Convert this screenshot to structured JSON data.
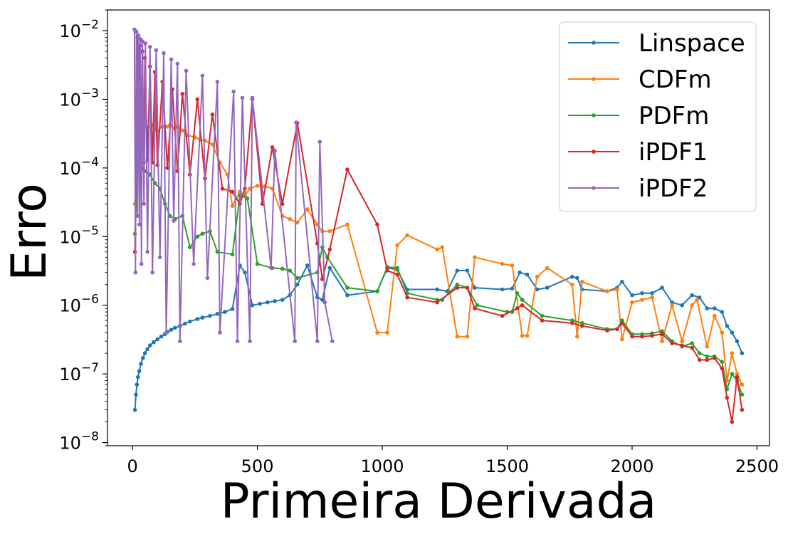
{
  "chart_data": {
    "type": "line",
    "title": "",
    "xlabel": "Primeira Derivada",
    "ylabel": "Erro",
    "xlim": [
      -100,
      2550
    ],
    "ylim": [
      9e-09,
      0.02
    ],
    "yscale": "log",
    "grid": false,
    "legend_position": "top-right",
    "xticks": [
      0,
      500,
      1000,
      1500,
      2000,
      2500
    ],
    "xtick_labels": [
      "0",
      "500",
      "1000",
      "1500",
      "2000",
      "2500"
    ],
    "yticks": [
      1e-08,
      1e-07,
      1e-06,
      1e-05,
      0.0001,
      0.001,
      0.01
    ],
    "ytick_labels": [
      {
        "base": "10",
        "exp": "−8"
      },
      {
        "base": "10",
        "exp": "−7"
      },
      {
        "base": "10",
        "exp": "−6"
      },
      {
        "base": "10",
        "exp": "−5"
      },
      {
        "base": "10",
        "exp": "−4"
      },
      {
        "base": "10",
        "exp": "−3"
      },
      {
        "base": "10",
        "exp": "−2"
      }
    ],
    "series": [
      {
        "name": "Linspace",
        "color": "#1f77b4",
        "x": [
          10,
          14,
          18,
          22,
          27,
          34,
          42,
          50,
          60,
          70,
          85,
          100,
          115,
          130,
          140,
          155,
          170,
          190,
          210,
          230,
          260,
          280,
          310,
          340,
          370,
          400,
          430,
          450,
          480,
          510,
          540,
          570,
          600,
          630,
          660,
          700,
          740,
          760,
          790,
          860,
          980,
          1020,
          1060,
          1100,
          1220,
          1260,
          1300,
          1340,
          1370,
          1480,
          1520,
          1550,
          1580,
          1620,
          1660,
          1760,
          1780,
          1800,
          1900,
          1940,
          1960,
          2000,
          2040,
          2080,
          2120,
          2160,
          2200,
          2240,
          2270,
          2300,
          2330,
          2360,
          2380,
          2400,
          2420,
          2440
        ],
        "y": [
          3e-08,
          5e-08,
          7e-08,
          9e-08,
          1.1e-07,
          1.4e-07,
          1.7e-07,
          2e-07,
          2.3e-07,
          2.6e-07,
          2.9e-07,
          3.2e-07,
          3.5e-07,
          3.8e-07,
          4.1e-07,
          4.4e-07,
          4.7e-07,
          5e-07,
          5.4e-07,
          5.8e-07,
          6.3e-07,
          6.6e-07,
          7e-07,
          7.5e-07,
          8e-07,
          8.8e-07,
          3.8e-06,
          3e-06,
          1e-06,
          1.05e-06,
          1.1e-06,
          1.15e-06,
          1.2e-06,
          1.4e-06,
          2e-06,
          3.8e-06,
          1.3e-06,
          1.2e-06,
          3.5e-06,
          1.4e-06,
          1.6e-06,
          3.5e-06,
          3.3e-06,
          1.7e-06,
          1.7e-06,
          1.6e-06,
          3.2e-06,
          3.2e-06,
          1.8e-06,
          1.7e-06,
          1.75e-06,
          3e-06,
          2.8e-06,
          1.7e-06,
          1.8e-06,
          2.6e-06,
          2.5e-06,
          1.7e-06,
          1.6e-06,
          1.8e-06,
          2.2e-06,
          1.4e-06,
          1.5e-06,
          1.5e-06,
          1.8e-06,
          1.1e-06,
          1e-06,
          1.4e-06,
          1.3e-06,
          9e-07,
          9e-07,
          8e-07,
          5e-07,
          4e-07,
          3e-07,
          2e-07
        ]
      },
      {
        "name": "CDFm",
        "color": "#ff7f0e",
        "x": [
          10,
          20,
          30,
          45,
          60,
          80,
          100,
          120,
          140,
          150,
          165,
          180,
          200,
          220,
          250,
          270,
          290,
          320,
          350,
          380,
          400,
          430,
          450,
          470,
          500,
          530,
          560,
          600,
          630,
          660,
          700,
          740,
          760,
          790,
          860,
          980,
          1020,
          1060,
          1100,
          1220,
          1240,
          1300,
          1340,
          1370,
          1480,
          1520,
          1560,
          1580,
          1620,
          1660,
          1760,
          1780,
          1800,
          1900,
          1940,
          1960,
          2000,
          2040,
          2080,
          2120,
          2160,
          2200,
          2240,
          2260,
          2300,
          2330,
          2360,
          2380,
          2400,
          2420,
          2440
        ],
        "y": [
          3e-05,
          0.0003,
          0.00035,
          0.0004,
          0.00038,
          0.00042,
          0.00035,
          0.0004,
          0.0004,
          0.00042,
          0.00038,
          0.0004,
          0.00035,
          0.0003,
          0.00028,
          0.00026,
          0.00025,
          0.00022,
          0.00012,
          8e-05,
          2.8e-05,
          4.5e-05,
          4e-05,
          5e-05,
          5.5e-05,
          5.4e-05,
          5e-05,
          2e-05,
          1.8e-05,
          1.6e-05,
          2.5e-05,
          1.5e-05,
          1.2e-05,
          1.2e-05,
          1.5e-05,
          4e-07,
          4e-07,
          7.5e-06,
          1.05e-05,
          6.5e-06,
          7e-06,
          3.5e-07,
          3.5e-07,
          5e-06,
          4e-06,
          3.8e-06,
          3.6e-07,
          3.6e-07,
          2.6e-06,
          3.5e-06,
          2e-06,
          3.5e-07,
          2.2e-06,
          1.6e-06,
          1.7e-06,
          3.2e-07,
          1.1e-06,
          1.2e-06,
          1.3e-06,
          3e-07,
          1e-06,
          3e-07,
          1e-06,
          1.2e-06,
          2.5e-07,
          7e-07,
          4e-07,
          8e-08,
          2e-07,
          1e-07,
          7e-08
        ]
      },
      {
        "name": "PDFm",
        "color": "#2ca02c",
        "x": [
          10,
          20,
          35,
          50,
          70,
          90,
          110,
          130,
          150,
          170,
          200,
          230,
          260,
          280,
          310,
          340,
          400,
          430,
          460,
          500,
          560,
          600,
          630,
          660,
          740,
          760,
          780,
          860,
          980,
          1020,
          1060,
          1100,
          1220,
          1240,
          1300,
          1340,
          1380,
          1500,
          1520,
          1540,
          1560,
          1640,
          1760,
          1800,
          1900,
          1940,
          1960,
          2000,
          2040,
          2080,
          2120,
          2160,
          2200,
          2240,
          2270,
          2300,
          2330,
          2360,
          2380,
          2400,
          2420,
          2440
        ],
        "y": [
          1.1e-05,
          9e-05,
          9.5e-05,
          9e-05,
          8e-05,
          6e-05,
          5e-05,
          3e-05,
          2e-05,
          1.8e-05,
          2e-05,
          7e-06,
          1e-05,
          1.1e-05,
          1.2e-05,
          6e-06,
          5.5e-06,
          4e-05,
          3.6e-05,
          4e-06,
          3.5e-06,
          3.4e-06,
          3.2e-06,
          2.5e-06,
          3e-06,
          7e-06,
          5e-06,
          1.8e-06,
          1.6e-06,
          3.6e-06,
          3.5e-06,
          1.5e-06,
          1.2e-06,
          1.2e-06,
          2e-06,
          1.8e-06,
          1e-06,
          8e-07,
          8e-07,
          1.5e-06,
          1.2e-06,
          7e-07,
          6e-07,
          5.5e-07,
          4.5e-07,
          4.5e-07,
          6e-07,
          3.8e-07,
          3.8e-07,
          3.9e-07,
          4.2e-07,
          3e-07,
          2.5e-07,
          2.8e-07,
          2e-07,
          1.8e-07,
          1.8e-07,
          1.5e-07,
          6e-08,
          1e-07,
          8e-08,
          5e-08
        ]
      },
      {
        "name": "iPDF1",
        "color": "#d62728",
        "x": [
          10,
          15,
          20,
          25,
          30,
          35,
          40,
          45,
          50,
          60,
          70,
          80,
          90,
          100,
          120,
          140,
          160,
          180,
          200,
          230,
          260,
          290,
          320,
          360,
          400,
          430,
          450,
          480,
          520,
          560,
          600,
          660,
          740,
          760,
          790,
          860,
          980,
          1020,
          1060,
          1100,
          1220,
          1300,
          1340,
          1370,
          1480,
          1540,
          1560,
          1640,
          1760,
          1800,
          1900,
          1940,
          1960,
          2000,
          2040,
          2080,
          2120,
          2160,
          2200,
          2240,
          2270,
          2300,
          2330,
          2360,
          2380,
          2400,
          2420,
          2440
        ],
        "y": [
          6e-06,
          0.0009,
          0.008,
          0.0002,
          0.006,
          0.0001,
          0.005,
          0.00012,
          0.004,
          0.00013,
          0.003,
          0.00012,
          0.0025,
          0.00011,
          0.0018,
          0.0001,
          0.0014,
          9e-05,
          0.0012,
          8e-05,
          0.001,
          7e-05,
          0.0006,
          5e-05,
          4.5e-05,
          3e-05,
          5e-05,
          0.001,
          3e-05,
          0.0002,
          3e-05,
          0.00045,
          8e-06,
          2.4e-06,
          6.5e-06,
          9.5e-05,
          1.5e-05,
          3.2e-06,
          2.8e-06,
          1.3e-06,
          1.1e-06,
          1.8e-06,
          1.8e-06,
          9e-07,
          7e-07,
          9e-07,
          1e-06,
          6e-07,
          5.5e-07,
          5e-07,
          4.3e-07,
          4.5e-07,
          5.5e-07,
          3.5e-07,
          3.5e-07,
          3.6e-07,
          3.8e-07,
          2.8e-07,
          2.6e-07,
          2.4e-07,
          1.6e-07,
          1.6e-07,
          1.7e-07,
          1.2e-07,
          4.5e-08,
          2e-08,
          9e-08,
          3e-08
        ]
      },
      {
        "name": "iPDF2",
        "color": "#9467bd",
        "x": [
          8,
          12,
          16,
          20,
          24,
          28,
          32,
          36,
          40,
          46,
          52,
          60,
          70,
          80,
          95,
          110,
          125,
          135,
          155,
          165,
          180,
          190,
          215,
          245,
          280,
          300,
          340,
          350,
          405,
          420,
          440,
          470,
          480,
          555,
          570,
          650,
          655,
          740,
          750,
          770,
          800
        ],
        "y": [
          0.0104,
          3e-06,
          0.0096,
          2e-05,
          0.0085,
          1.5e-05,
          0.0075,
          4e-06,
          0.007,
          3e-05,
          0.0065,
          6e-06,
          0.0058,
          3e-06,
          0.0052,
          5e-06,
          0.0047,
          4e-07,
          0.0038,
          1.7e-05,
          0.0033,
          3e-07,
          0.0026,
          4e-06,
          0.0022,
          2.5e-06,
          0.0018,
          4e-07,
          0.0013,
          3e-07,
          0.00105,
          3e-07,
          0.00105,
          3.5e-06,
          0.00018,
          3e-07,
          0.00046,
          3e-07,
          0.00024,
          1.1e-06,
          3e-07
        ]
      }
    ]
  }
}
